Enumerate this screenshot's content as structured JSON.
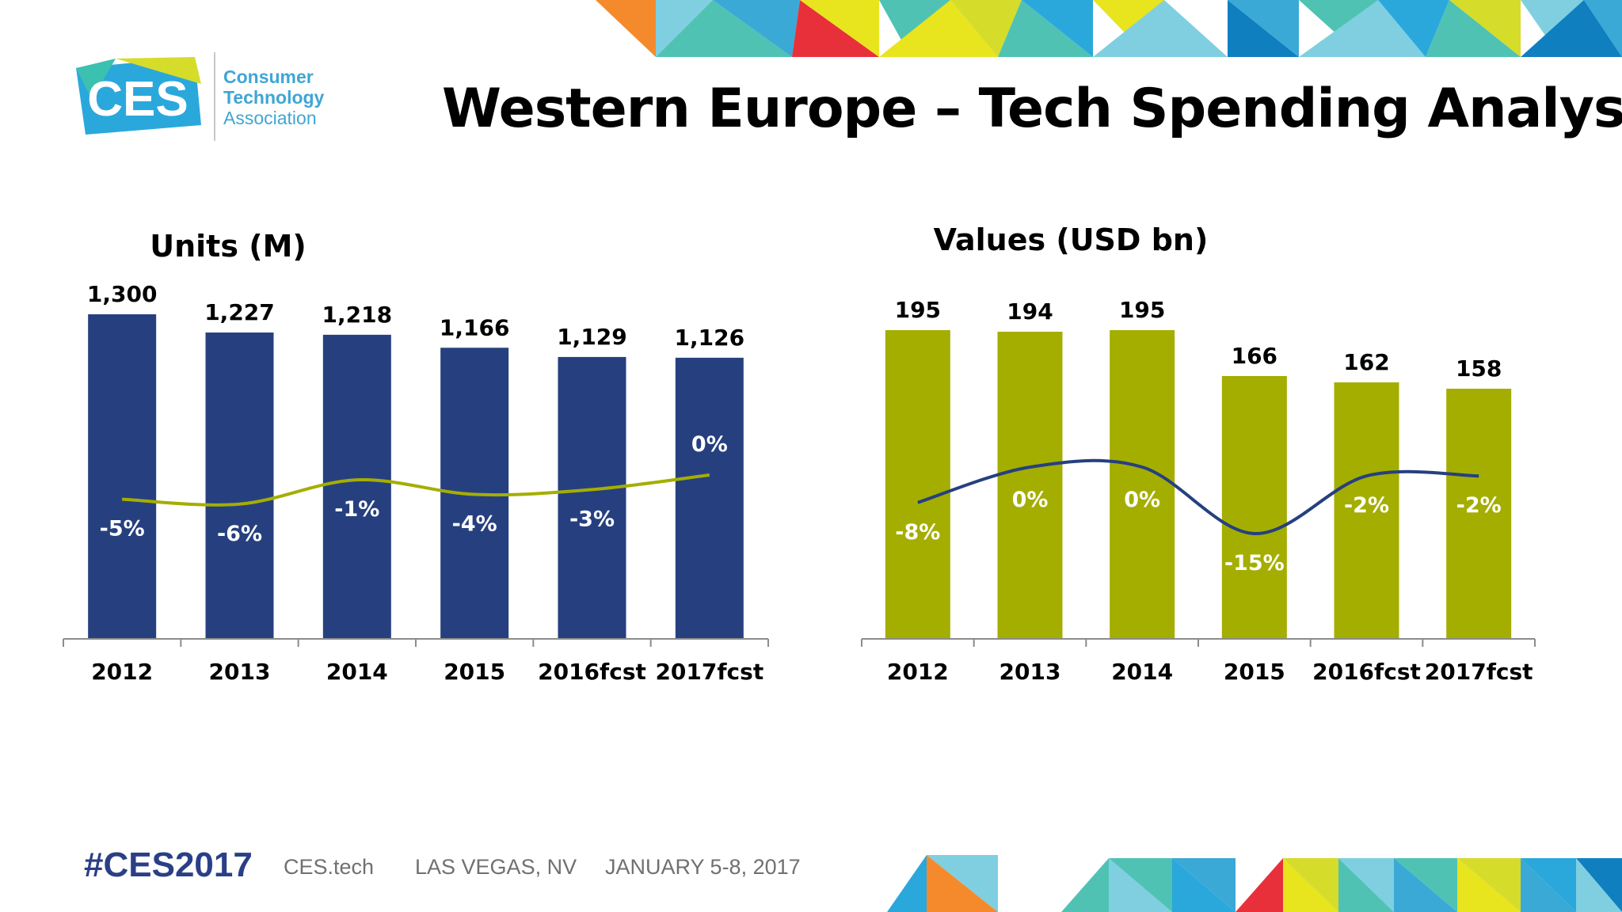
{
  "header": {
    "title": "Western Europe – Tech Spending Analysis",
    "logo": {
      "mark": "CES",
      "line1": "Consumer",
      "line2": "Technology",
      "line3": "Association"
    }
  },
  "footer": {
    "hashtag": "#CES2017",
    "site": "CES.tech",
    "location": "LAS VEGAS, NV",
    "dates": "JANUARY 5-8, 2017"
  },
  "colors": {
    "units_bar": "#26407f",
    "values_bar": "#a4ae00",
    "units_line": "#a4ae00",
    "values_line": "#26407f"
  },
  "chart_data": [
    {
      "type": "bar",
      "title": "Units (M)",
      "categories": [
        "2012",
        "2013",
        "2014",
        "2015",
        "2016fcst",
        "2017fcst"
      ],
      "values": [
        1300,
        1227,
        1218,
        1166,
        1129,
        1126
      ],
      "value_labels": [
        "1,300",
        "1,227",
        "1,218",
        "1,166",
        "1,129",
        "1,126"
      ],
      "growth_line": {
        "values": [
          -5,
          -6,
          -1,
          -4,
          -3,
          0
        ],
        "labels": [
          "-5%",
          "-6%",
          "-1%",
          "-4%",
          "-3%",
          "0%"
        ]
      },
      "ylim": [
        0,
        1300
      ],
      "grid": false,
      "legend": "none"
    },
    {
      "type": "bar",
      "title": "Values (USD bn)",
      "categories": [
        "2012",
        "2013",
        "2014",
        "2015",
        "2016fcst",
        "2017fcst"
      ],
      "values": [
        195,
        194,
        195,
        166,
        162,
        158
      ],
      "value_labels": [
        "195",
        "194",
        "195",
        "166",
        "162",
        "158"
      ],
      "growth_line": {
        "values": [
          -8,
          0,
          0,
          -15,
          -2,
          -2
        ],
        "labels": [
          "-8%",
          "0%",
          "0%",
          "-15%",
          "-2%",
          "-2%"
        ]
      },
      "ylim": [
        0,
        195
      ],
      "grid": false,
      "legend": "none"
    }
  ]
}
